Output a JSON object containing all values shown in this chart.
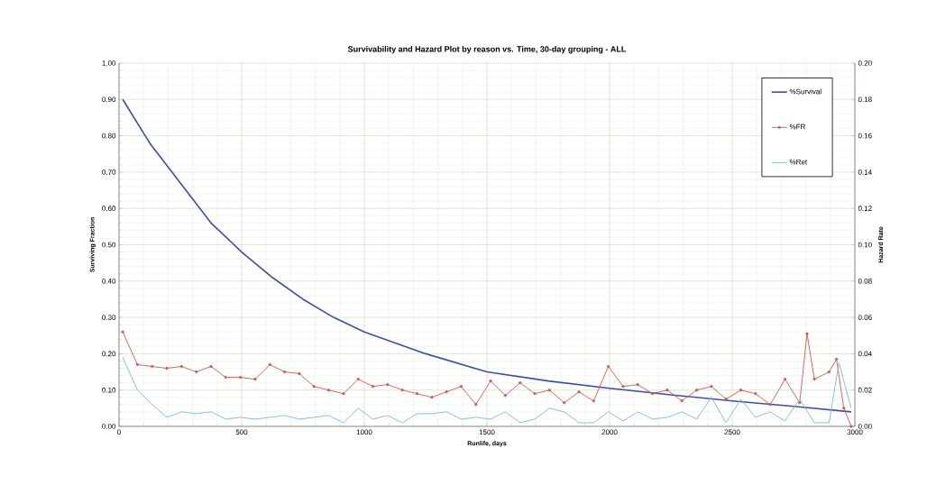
{
  "chart_data": {
    "type": "line",
    "title": "Survivability and Hazard Plot by reason vs. Time, 30-day grouping - ALL",
    "xlabel": "Runlife, days",
    "ylabel": "Surviving Fraction",
    "y2label": "Hazard Rate",
    "xlim": [
      0,
      3000
    ],
    "xticks": [
      0,
      500,
      1000,
      1500,
      2000,
      2500,
      3000
    ],
    "ylim": [
      0,
      1
    ],
    "yticks": [
      {
        "value": 0,
        "label": "0.00"
      },
      {
        "value": 0.1,
        "label": "0.10"
      },
      {
        "value": 0.2,
        "label": "0.20"
      },
      {
        "value": 0.3,
        "label": "0.30"
      },
      {
        "value": 0.4,
        "label": "0.40"
      },
      {
        "value": 0.5,
        "label": "0.50"
      },
      {
        "value": 0.6,
        "label": "0.60"
      },
      {
        "value": 0.7,
        "label": "0.70"
      },
      {
        "value": 0.8,
        "label": "0.80"
      },
      {
        "value": 0.9,
        "label": "0.90"
      },
      {
        "value": 1,
        "label": "1.00"
      }
    ],
    "y2lim": [
      0,
      0.2
    ],
    "y2ticks": [
      {
        "value": 0,
        "label": "0.00"
      },
      {
        "value": 0.02,
        "label": "0.02"
      },
      {
        "value": 0.04,
        "label": "0.04"
      },
      {
        "value": 0.06,
        "label": "0.06"
      },
      {
        "value": 0.08,
        "label": "0.08"
      },
      {
        "value": 0.1,
        "label": "0.10"
      },
      {
        "value": 0.12,
        "label": "0.12"
      },
      {
        "value": 0.14,
        "label": "0.14"
      },
      {
        "value": 0.16,
        "label": "0.16"
      },
      {
        "value": 0.18,
        "label": "0.18"
      },
      {
        "value": 0.2,
        "label": "0.20"
      }
    ],
    "grid": true,
    "legend": "top right",
    "line_style": "solid",
    "series": [
      {
        "name": "%Survival",
        "color": "#3f4fa0",
        "marker": "none",
        "x": [
          15,
          125,
          250,
          375,
          500,
          625,
          750,
          875,
          1000,
          1250,
          1500,
          1750,
          2000,
          2250,
          2500,
          2750,
          2985
        ],
        "values": [
          0.9,
          0.78,
          0.67,
          0.56,
          0.48,
          0.41,
          0.35,
          0.3,
          0.26,
          0.2,
          0.15,
          0.125,
          0.105,
          0.087,
          0.07,
          0.055,
          0.04
        ]
      },
      {
        "name": "%FR",
        "color": "#d9534f",
        "marker": "circle",
        "axis": "y2",
        "x": [
          15,
          75,
          135,
          195,
          255,
          315,
          375,
          435,
          495,
          555,
          615,
          675,
          735,
          795,
          855,
          915,
          975,
          1035,
          1095,
          1155,
          1215,
          1275,
          1335,
          1395,
          1455,
          1515,
          1575,
          1635,
          1695,
          1755,
          1815,
          1875,
          1935,
          1995,
          2055,
          2115,
          2175,
          2235,
          2295,
          2355,
          2415,
          2475,
          2535,
          2595,
          2655,
          2715,
          2775,
          2805,
          2835,
          2895,
          2925,
          2955,
          2985
        ],
        "values": [
          0.052,
          0.034,
          0.033,
          0.032,
          0.033,
          0.03,
          0.033,
          0.027,
          0.027,
          0.026,
          0.034,
          0.03,
          0.029,
          0.022,
          0.02,
          0.018,
          0.026,
          0.022,
          0.023,
          0.02,
          0.018,
          0.016,
          0.019,
          0.022,
          0.012,
          0.025,
          0.017,
          0.024,
          0.018,
          0.02,
          0.013,
          0.019,
          0.014,
          0.033,
          0.022,
          0.023,
          0.018,
          0.02,
          0.014,
          0.02,
          0.022,
          0.015,
          0.02,
          0.018,
          0.012,
          0.026,
          0.013,
          0.051,
          0.026,
          0.03,
          0.037,
          0.01,
          0.0
        ]
      },
      {
        "name": "%Ret",
        "color": "#7fb8d6",
        "marker": "none",
        "axis": "y2",
        "x": [
          15,
          75,
          135,
          195,
          255,
          315,
          375,
          435,
          495,
          555,
          615,
          675,
          735,
          795,
          855,
          915,
          975,
          1035,
          1095,
          1155,
          1215,
          1275,
          1335,
          1395,
          1455,
          1515,
          1575,
          1635,
          1695,
          1755,
          1815,
          1875,
          1935,
          1995,
          2055,
          2115,
          2175,
          2235,
          2295,
          2355,
          2415,
          2475,
          2535,
          2595,
          2655,
          2715,
          2775,
          2835,
          2895,
          2935,
          2985
        ],
        "values": [
          0.038,
          0.02,
          0.012,
          0.005,
          0.008,
          0.007,
          0.008,
          0.004,
          0.005,
          0.004,
          0.005,
          0.006,
          0.004,
          0.005,
          0.006,
          0.002,
          0.01,
          0.004,
          0.006,
          0.002,
          0.007,
          0.007,
          0.008,
          0.004,
          0.005,
          0.004,
          0.008,
          0.002,
          0.004,
          0.01,
          0.008,
          0.002,
          0.002,
          0.008,
          0.003,
          0.008,
          0.004,
          0.005,
          0.008,
          0.004,
          0.016,
          0.002,
          0.015,
          0.005,
          0.008,
          0.003,
          0.015,
          0.002,
          0.002,
          0.035,
          0.01
        ]
      }
    ]
  }
}
